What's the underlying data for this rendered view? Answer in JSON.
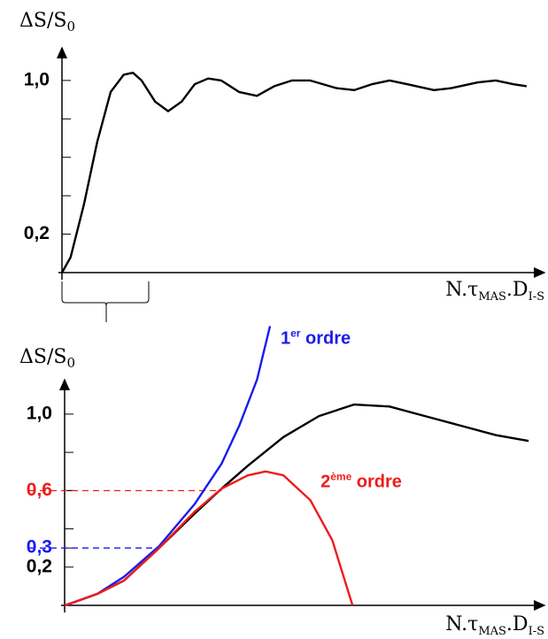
{
  "chart_data": [
    {
      "type": "line",
      "y_label": [
        "ΔS/S",
        "0"
      ],
      "x_label": [
        "N.τ",
        "MAS",
        ".D",
        "I-S"
      ],
      "xlim": [
        0,
        10
      ],
      "ylim": [
        0,
        1.17
      ],
      "yticks": [
        {
          "value": 0.2,
          "label": "0,2"
        },
        {
          "value": 1,
          "label": "1,0"
        }
      ],
      "minor_yticks": [
        0.4,
        0.6,
        0.8
      ],
      "series": [
        {
          "color": "#000000",
          "x": [
            0,
            0.18,
            0.46,
            0.73,
            1.01,
            1.28,
            1.47,
            1.65,
            1.93,
            2.2,
            2.48,
            2.75,
            3.03,
            3.3,
            3.67,
            4.04,
            4.4,
            4.77,
            5.14,
            5.69,
            6.06,
            6.42,
            6.79,
            7.16,
            7.71,
            8.07,
            8.62,
            8.99,
            9.36,
            9.63
          ],
          "values": [
            0,
            0.08,
            0.36,
            0.68,
            0.94,
            1.03,
            1.04,
            1.0,
            0.89,
            0.84,
            0.89,
            0.98,
            1.01,
            1.0,
            0.94,
            0.92,
            0.97,
            1.0,
            1.0,
            0.96,
            0.95,
            0.98,
            1.0,
            0.98,
            0.95,
            0.96,
            0.99,
            1.0,
            0.98,
            0.97
          ]
        }
      ]
    },
    {
      "type": "line",
      "y_label": [
        "ΔS/S",
        "0"
      ],
      "x_label": [
        "N.τ",
        "MAS",
        ".D",
        "I-S"
      ],
      "xlim": [
        0,
        10
      ],
      "ylim": [
        0,
        1.18
      ],
      "yticks": [
        {
          "value": 0.2,
          "label": "0,2"
        },
        {
          "value": 0.3,
          "label": "0,3",
          "color": "#1a1aee"
        },
        {
          "value": 0.6,
          "label": "0,6",
          "color": "#ee1c1c"
        },
        {
          "value": 1,
          "label": "1,0"
        }
      ],
      "minor_yticks": [
        0.4,
        0.6,
        0.8
      ],
      "reference_lines": [
        {
          "y": 0.6,
          "x_end": 3.27,
          "color": "#ee1c1c"
        },
        {
          "y": 0.3,
          "x_end": 1.97,
          "color": "#1a1aee"
        }
      ],
      "series": [
        {
          "color": "#000000",
          "x": [
            0,
            0.13,
            0.68,
            1.24,
            1.97,
            2.71,
            3.27,
            3.82,
            4.56,
            5.3,
            6.03,
            6.77,
            7.51,
            8.25,
            8.99,
            9.67
          ],
          "values": [
            0,
            0.01,
            0.06,
            0.13,
            0.3,
            0.48,
            0.61,
            0.73,
            0.88,
            0.99,
            1.05,
            1.04,
            0.99,
            0.94,
            0.89,
            0.86
          ]
        },
        {
          "name": "1er ordre",
          "color": "#1a1aee",
          "x": [
            0,
            0.13,
            0.68,
            1.24,
            1.97,
            2.71,
            3.27,
            3.64,
            4.01,
            4.28
          ],
          "values": [
            0,
            0.01,
            0.06,
            0.15,
            0.31,
            0.53,
            0.74,
            0.94,
            1.18,
            1.46
          ]
        },
        {
          "name": "2ème ordre",
          "color": "#ee1c1c",
          "x": [
            0,
            0.13,
            0.68,
            1.24,
            1.97,
            2.71,
            3.27,
            3.82,
            4.19,
            4.56,
            5.12,
            5.58,
            6.0
          ],
          "values": [
            0,
            0.01,
            0.06,
            0.13,
            0.3,
            0.49,
            0.61,
            0.68,
            0.7,
            0.68,
            0.55,
            0.34,
            0
          ]
        }
      ]
    }
  ]
}
